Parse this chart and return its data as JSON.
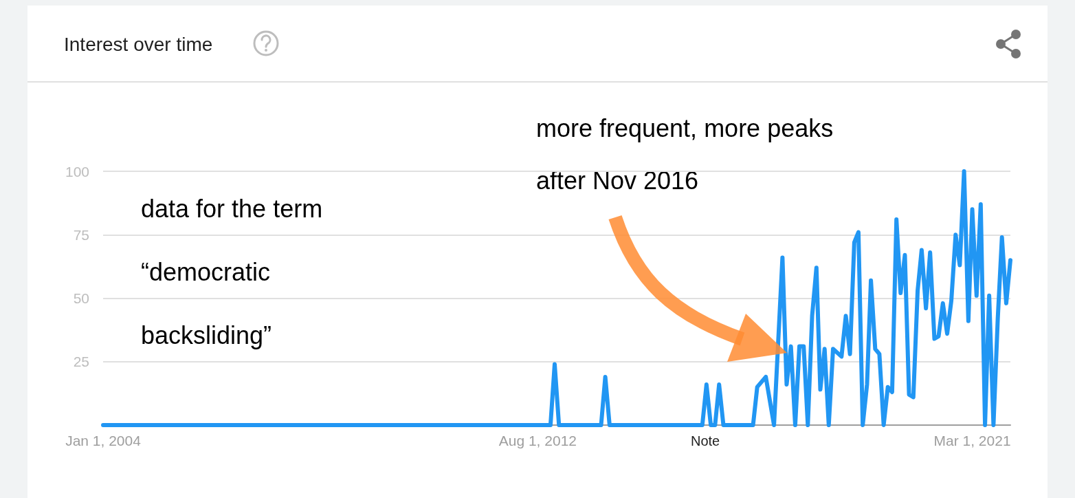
{
  "chart_data": {
    "type": "line",
    "title": "Interest over time",
    "x": [
      "2004-01",
      "2012-11",
      "2012-12",
      "2013-01",
      "2013-11",
      "2013-12",
      "2014-01",
      "2015-11",
      "2015-12",
      "2016-01",
      "2016-02",
      "2016-03",
      "2016-04",
      "2016-11",
      "2016-12",
      "2017-02",
      "2017-04",
      "2017-06",
      "2017-07",
      "2017-08",
      "2017-09",
      "2017-10",
      "2017-11",
      "2017-12",
      "2018-01",
      "2018-02",
      "2018-03",
      "2018-04",
      "2018-05",
      "2018-06",
      "2018-08",
      "2018-09",
      "2018-10",
      "2018-11",
      "2018-12",
      "2019-01",
      "2019-02",
      "2019-03",
      "2019-04",
      "2019-05",
      "2019-06",
      "2019-07",
      "2019-08",
      "2019-09",
      "2019-10",
      "2019-11",
      "2019-12",
      "2020-01",
      "2020-02",
      "2020-03",
      "2020-04",
      "2020-05",
      "2020-06",
      "2020-07",
      "2020-08",
      "2020-09",
      "2020-10",
      "2020-11",
      "2020-12",
      "2021-01",
      "2021-02",
      "2021-03",
      "2021-04",
      "2021-05",
      "2021-06",
      "2021-07",
      "2021-08",
      "2021-09",
      "2021-10",
      "2021-11",
      "2021-12"
    ],
    "series": [
      {
        "color": "#2196f3",
        "values": [
          0,
          0,
          24,
          0,
          0,
          19,
          0,
          0,
          16,
          0,
          0,
          16,
          0,
          0,
          15,
          19,
          0,
          66,
          16,
          31,
          0,
          31,
          31,
          0,
          43,
          62,
          14,
          30,
          0,
          30,
          27,
          43,
          28,
          72,
          76,
          0,
          16,
          57,
          30,
          28,
          0,
          15,
          13,
          81,
          52,
          67,
          12,
          11,
          53,
          69,
          46,
          68,
          34,
          35,
          48,
          36,
          49,
          75,
          63,
          100,
          41,
          85,
          51,
          87,
          0,
          51,
          0,
          42,
          74,
          48,
          65
        ]
      }
    ],
    "xlim": [
      "2004-01",
      "2021-12"
    ],
    "xticks": [
      {
        "value": "2004-01-01",
        "label": "Jan 1, 2004"
      },
      {
        "value": "2012-08-01",
        "label": "Aug 1, 2012"
      },
      {
        "value": "2021-03-01",
        "label": "Mar 1, 2021"
      }
    ],
    "ylim": [
      0,
      100
    ],
    "yticks": [
      25,
      50,
      75,
      100
    ],
    "grid": "y",
    "marker": "none",
    "line_style": "solid",
    "annotations": [
      "more frequent, more peaks after Nov 2016",
      "data for the term “democratic backsliding”",
      "Note"
    ]
  }
}
